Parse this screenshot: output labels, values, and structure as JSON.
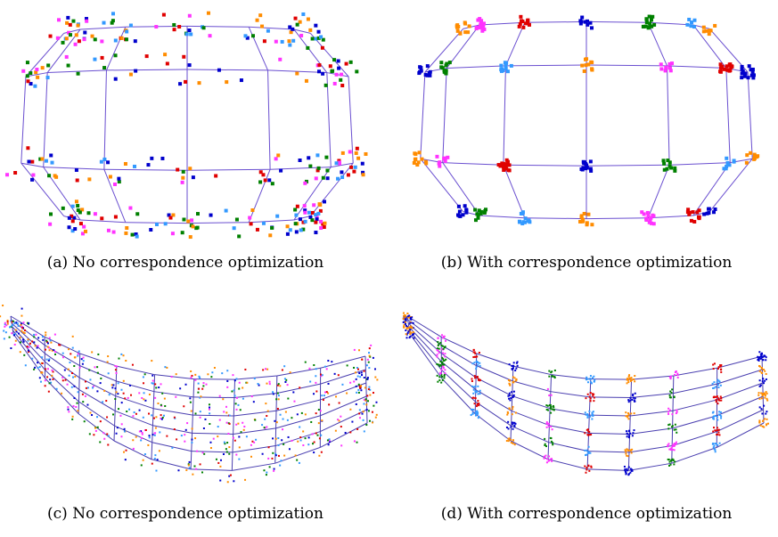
{
  "figures": [
    {
      "caption": "(a) No correspondence optimization"
    },
    {
      "caption": "(b) With correspondence optimization"
    },
    {
      "caption": "(c) No correspondence optimization"
    },
    {
      "caption": "(d) With correspondence optimization"
    }
  ]
}
